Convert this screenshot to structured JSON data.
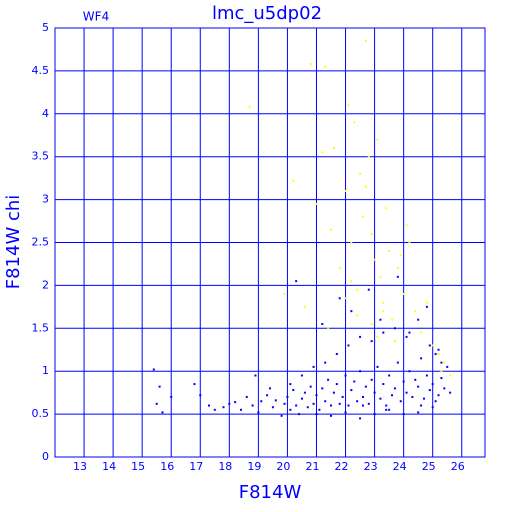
{
  "chart_data": {
    "type": "scatter",
    "title": "lmc_u5dp02",
    "subtitle": "WF4",
    "x_label": "F814W",
    "y_label": "F814W chi",
    "xlim": [
      12,
      26.8
    ],
    "ylim": [
      0,
      5
    ],
    "xticks": [
      13,
      14,
      15,
      16,
      17,
      18,
      19,
      20,
      21,
      22,
      23,
      24,
      25,
      26
    ],
    "yticks": [
      0,
      0.5,
      1,
      1.5,
      2,
      2.5,
      3,
      3.5,
      4,
      4.5,
      5
    ],
    "grid": true,
    "series": [
      {
        "color": "#0000ff",
        "x": [
          15.4,
          15.5,
          15.6,
          15.7,
          16.0,
          16.8,
          17.0,
          17.3,
          17.5,
          17.8,
          18.0,
          18.2,
          18.4,
          18.6,
          18.8,
          19.0,
          19.1,
          19.3,
          19.5,
          19.6,
          19.8,
          19.9,
          20.0,
          20.1,
          20.2,
          20.3,
          20.4,
          20.5,
          20.6,
          20.7,
          20.8,
          20.9,
          21.0,
          21.1,
          21.2,
          21.3,
          21.4,
          21.5,
          21.6,
          21.7,
          21.8,
          21.9,
          22.0,
          22.1,
          22.2,
          22.3,
          22.4,
          22.5,
          22.6,
          22.7,
          22.8,
          22.9,
          23.0,
          23.1,
          23.2,
          23.3,
          23.4,
          23.5,
          23.6,
          23.7,
          23.8,
          23.9,
          24.0,
          24.1,
          24.2,
          24.3,
          24.4,
          24.5,
          24.6,
          24.7,
          24.8,
          24.9,
          25.0,
          25.1,
          25.2,
          25.3,
          25.4,
          25.5,
          25.6,
          20.1,
          20.5,
          20.9,
          21.3,
          21.7,
          22.1,
          22.5,
          22.9,
          23.3,
          23.7,
          24.1,
          24.5,
          24.9,
          25.3,
          21.0,
          21.5,
          22.0,
          22.5,
          23.0,
          23.5,
          24.0,
          24.5,
          25.0,
          21.2,
          22.2,
          23.2,
          24.2,
          25.2,
          20.3,
          21.8,
          22.8,
          23.8,
          24.8,
          19.4,
          18.9,
          22.6,
          23.4,
          24.6,
          25.1
        ],
        "y": [
          1.02,
          0.62,
          0.82,
          0.52,
          0.7,
          0.85,
          0.72,
          0.6,
          0.55,
          0.58,
          0.62,
          0.64,
          0.55,
          0.7,
          0.6,
          0.52,
          0.65,
          0.72,
          0.58,
          0.66,
          0.48,
          0.62,
          0.7,
          0.55,
          0.78,
          0.6,
          0.5,
          0.68,
          0.75,
          0.58,
          0.82,
          0.62,
          0.72,
          0.55,
          0.8,
          0.65,
          0.9,
          0.6,
          0.75,
          0.85,
          0.62,
          0.7,
          0.95,
          0.6,
          0.78,
          0.88,
          0.65,
          1.0,
          0.7,
          0.82,
          0.62,
          0.9,
          0.75,
          1.05,
          0.68,
          0.85,
          0.6,
          0.95,
          0.72,
          0.8,
          1.1,
          0.65,
          0.88,
          0.75,
          1.0,
          0.7,
          0.9,
          0.82,
          1.15,
          0.68,
          0.95,
          0.78,
          0.85,
          1.2,
          0.72,
          0.92,
          0.8,
          1.05,
          0.75,
          0.85,
          0.95,
          1.05,
          1.1,
          1.2,
          1.3,
          1.4,
          1.35,
          1.45,
          1.5,
          1.4,
          1.6,
          1.3,
          1.1,
          0.5,
          0.48,
          0.52,
          0.45,
          0.5,
          0.55,
          0.5,
          0.52,
          0.58,
          1.55,
          1.7,
          1.6,
          1.45,
          1.25,
          2.05,
          1.85,
          1.95,
          2.1,
          1.75,
          0.8,
          0.95,
          0.6,
          0.55,
          0.6,
          0.65
        ]
      },
      {
        "color": "#ffff00",
        "x": [
          18.7,
          20.2,
          20.8,
          21.0,
          21.2,
          21.3,
          21.5,
          21.6,
          21.8,
          22.0,
          22.1,
          22.2,
          22.3,
          22.4,
          22.5,
          22.6,
          22.7,
          22.8,
          22.9,
          23.0,
          23.1,
          23.2,
          23.3,
          23.4,
          23.5,
          23.6,
          23.8,
          24.0,
          24.2,
          24.4,
          24.6,
          24.8,
          25.0,
          25.2,
          25.4,
          25.6,
          22.9,
          23.1,
          22.4,
          22.0,
          21.4,
          23.7,
          24.1,
          22.7,
          23.3,
          20.6,
          19.9,
          22.2,
          23.9,
          25.3
        ],
        "y": [
          4.08,
          3.22,
          4.58,
          2.95,
          3.55,
          4.55,
          2.65,
          3.6,
          2.2,
          3.1,
          4.1,
          2.5,
          3.9,
          1.95,
          3.3,
          2.8,
          4.85,
          3.5,
          2.6,
          2.3,
          3.7,
          2.1,
          1.8,
          2.9,
          2.4,
          1.6,
          2.2,
          1.9,
          2.5,
          1.7,
          1.45,
          1.8,
          1.3,
          1.2,
          1.1,
          0.95,
          1.55,
          1.4,
          1.65,
          1.85,
          1.5,
          1.35,
          2.7,
          3.15,
          1.7,
          1.75,
          1.9,
          2.05,
          2.35,
          1.0
        ]
      }
    ]
  }
}
